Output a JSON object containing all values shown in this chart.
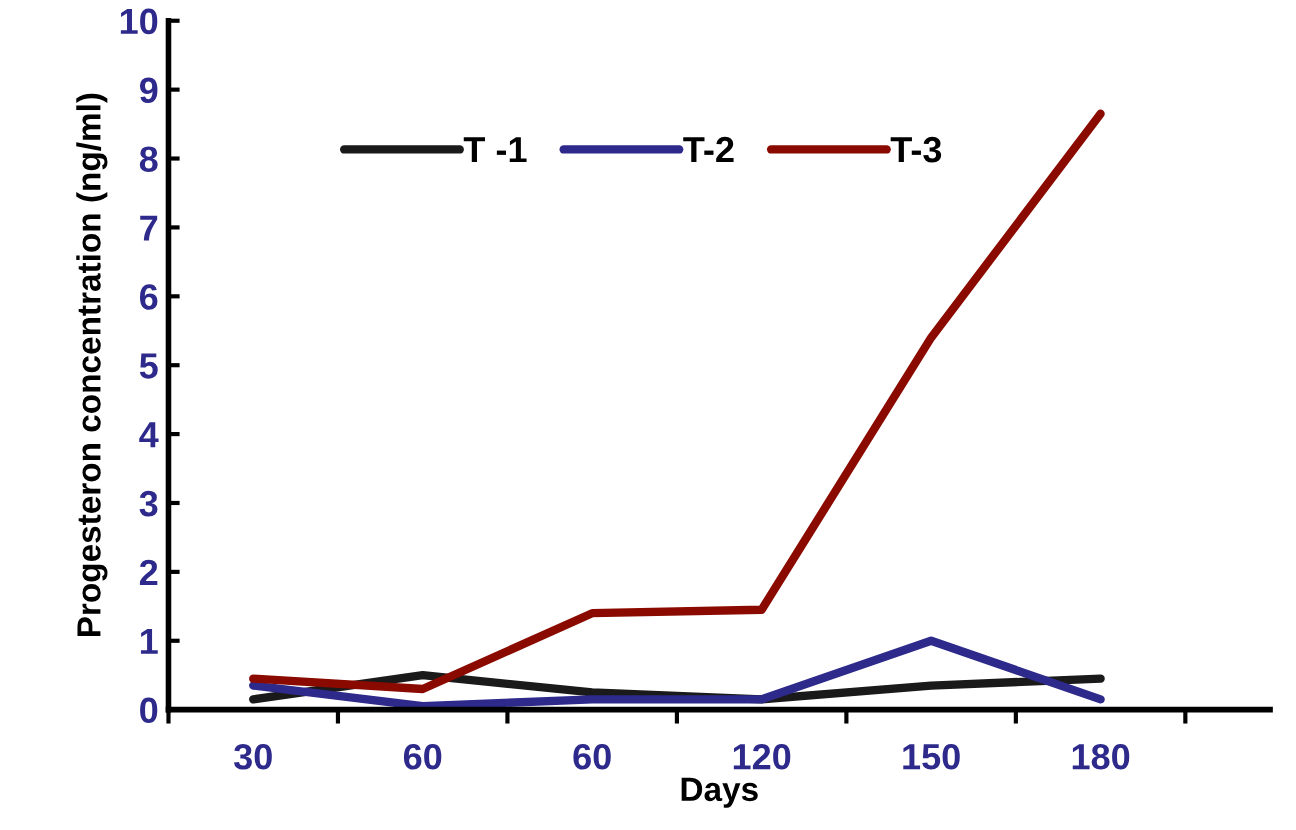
{
  "chart_data": {
    "type": "line",
    "xlabel": "Days",
    "ylabel": "Progesteron concentration (ng/ml)",
    "categories": [
      "30",
      "60",
      "60",
      "120",
      "150",
      "180"
    ],
    "series": [
      {
        "name": "T -1",
        "color": "#1a1a1a",
        "values": [
          0.15,
          0.5,
          0.25,
          0.15,
          0.35,
          0.45
        ]
      },
      {
        "name": "T-2",
        "color": "#2e2a8c",
        "values": [
          0.35,
          0.05,
          0.15,
          0.15,
          1.0,
          0.15
        ]
      },
      {
        "name": "T-3",
        "color": "#8b0a00",
        "values": [
          0.45,
          0.3,
          1.4,
          1.45,
          5.4,
          8.65
        ]
      }
    ],
    "ylim": [
      0,
      10
    ],
    "yticks": [
      0,
      1,
      2,
      3,
      4,
      5,
      6,
      7,
      8,
      9,
      10
    ],
    "grid": false,
    "legend": "top left",
    "marker": "none",
    "line_style": "solid"
  }
}
